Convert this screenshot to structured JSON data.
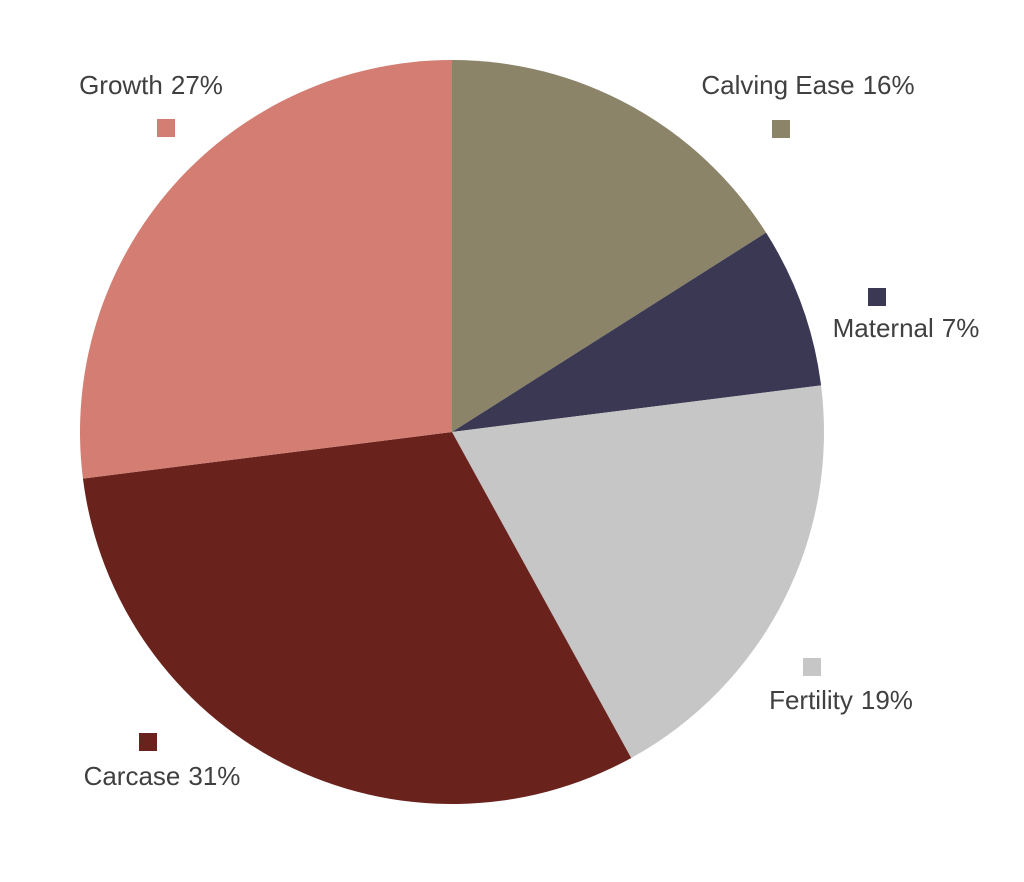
{
  "chart_data": {
    "type": "pie",
    "categories": [
      "Calving Ease",
      "Maternal",
      "Fertility",
      "Carcase",
      "Growth"
    ],
    "values": [
      16,
      7,
      19,
      31,
      27
    ],
    "value_labels": [
      "16%",
      "7%",
      "19%",
      "31%",
      "27%"
    ],
    "colors": [
      "#8b8469",
      "#3a3853",
      "#c6c6c6",
      "#6a221c",
      "#d47d72"
    ]
  }
}
